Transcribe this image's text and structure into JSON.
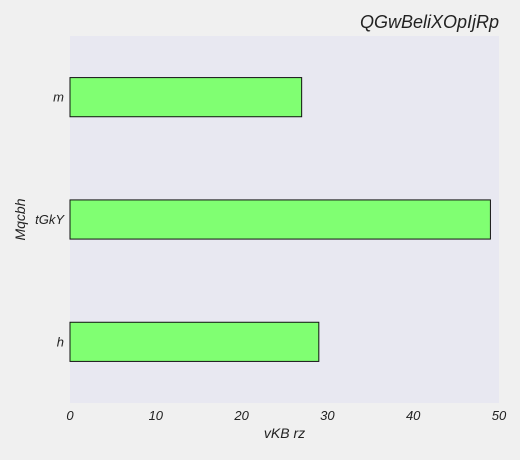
{
  "chart_data": {
    "type": "bar",
    "orientation": "horizontal",
    "title": "QGwBeliXOpIjRp",
    "xlabel": "vKB rz",
    "ylabel": "Mqcbh",
    "categories": [
      "h",
      "tGkY",
      "m"
    ],
    "values": [
      29,
      49,
      27
    ],
    "xlim": [
      0,
      50
    ],
    "xticks": [
      0,
      10,
      20,
      30,
      40,
      50
    ],
    "grid": false,
    "legend": "none",
    "colors": {
      "bar_fill": "#80ff72",
      "bar_edge": "#111111",
      "plot_background": "#e8e8f1",
      "page_background": "#f0f0f0"
    }
  }
}
